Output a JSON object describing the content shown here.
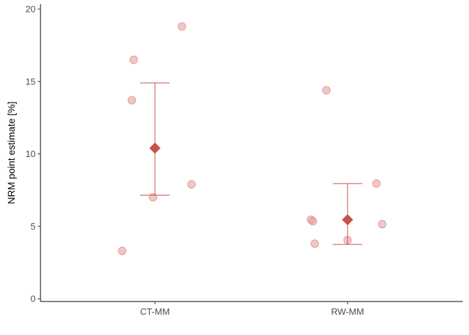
{
  "chart_data": {
    "type": "scatter",
    "title": "",
    "xlabel": "",
    "ylabel": "NRM point estimate [%]",
    "categories": [
      "CT-MM",
      "RW-MM"
    ],
    "ylim": [
      0,
      20
    ],
    "yticks": [
      0,
      5,
      10,
      15,
      20
    ],
    "grid": false,
    "legend": "none",
    "point_color": "#e8a09c",
    "summary_color": "#c9504a",
    "groups": [
      {
        "category": "CT-MM",
        "points": [
          {
            "jitter": -0.17,
            "y": 3.3
          },
          {
            "jitter": -0.11,
            "y": 16.5
          },
          {
            "jitter": -0.12,
            "y": 13.7
          },
          {
            "jitter": -0.01,
            "y": 7.0
          },
          {
            "jitter": 0.14,
            "y": 18.8
          },
          {
            "jitter": 0.19,
            "y": 7.9
          }
        ],
        "mean": 10.4,
        "error_low": 7.15,
        "error_high": 14.9
      },
      {
        "category": "RW-MM",
        "points": [
          {
            "jitter": -0.19,
            "y": 5.45
          },
          {
            "jitter": -0.18,
            "y": 5.35
          },
          {
            "jitter": -0.17,
            "y": 3.8
          },
          {
            "jitter": -0.11,
            "y": 14.4
          },
          {
            "jitter": 0.0,
            "y": 4.05
          },
          {
            "jitter": 0.15,
            "y": 7.95
          },
          {
            "jitter": 0.18,
            "y": 5.15
          }
        ],
        "mean": 5.45,
        "error_low": 3.75,
        "error_high": 7.95
      }
    ]
  }
}
